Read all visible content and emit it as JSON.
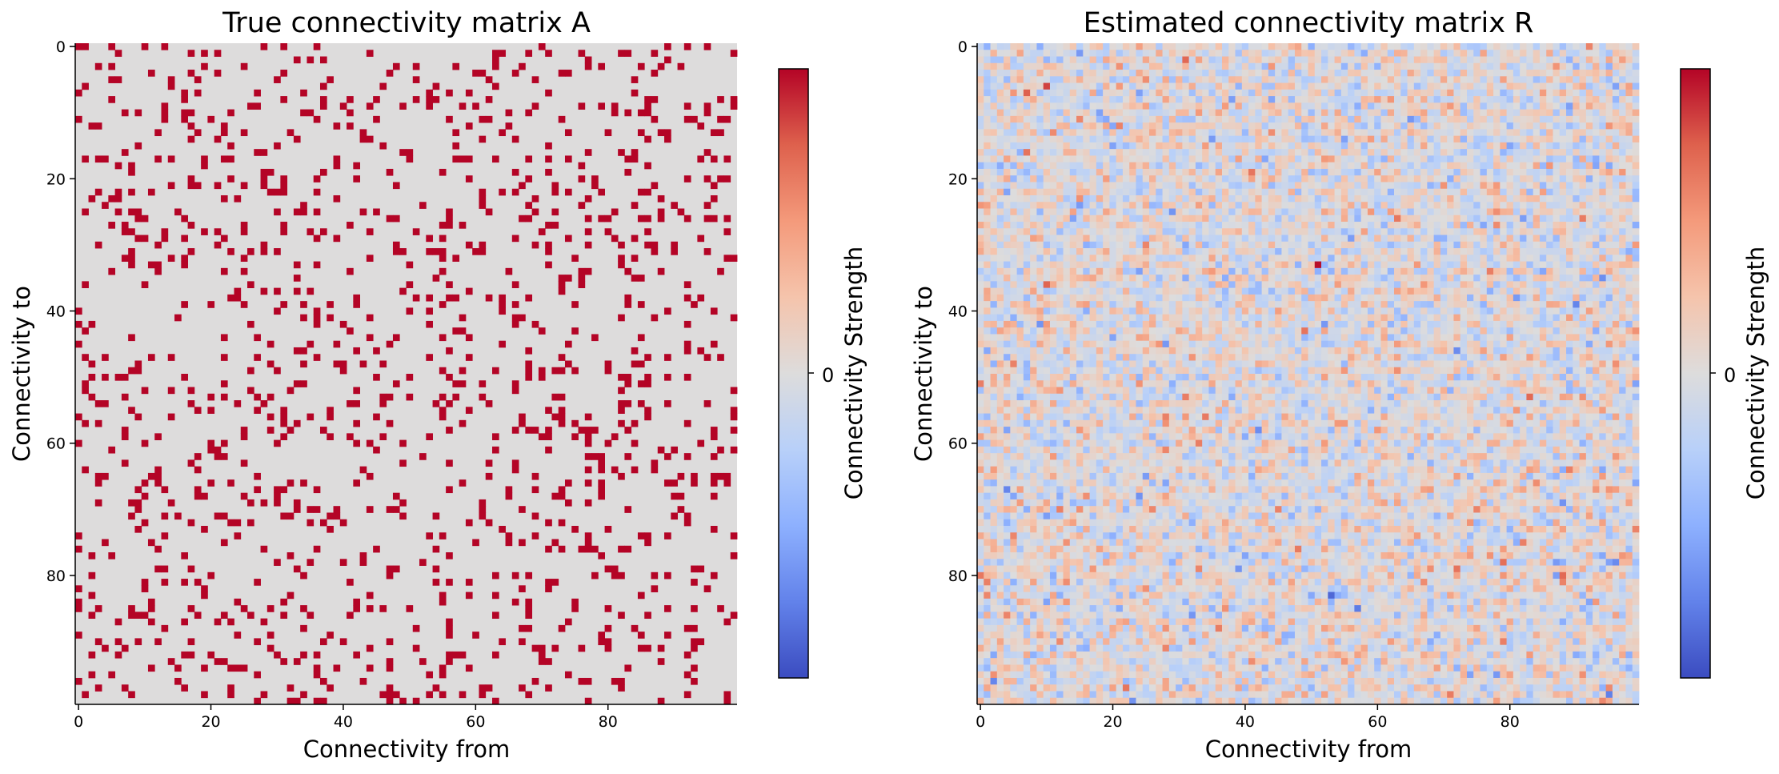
{
  "chart_data": [
    {
      "type": "heatmap",
      "title": "True connectivity matrix A",
      "xlabel": "Connectivity from",
      "ylabel": "Connectivity to",
      "xticks": [
        0,
        20,
        40,
        60,
        80
      ],
      "yticks": [
        0,
        20,
        40,
        60,
        80
      ],
      "size": [
        100,
        100
      ],
      "colormap": "coolwarm",
      "values": "binary 100x100 matrix; ~12% of entries are 1 (dark red #b40426), remainder 0 (neutral #dddcdc); individual cell values not legible at this resolution",
      "colorbar": {
        "label": "Connectivity Strength",
        "ticks": [
          "0"
        ]
      }
    },
    {
      "type": "heatmap",
      "title": "Estimated connectivity matrix R",
      "xlabel": "Connectivity from",
      "ylabel": "Connectivity to",
      "xticks": [
        0,
        20,
        40,
        60,
        80
      ],
      "yticks": [
        0,
        20,
        40,
        60,
        80
      ],
      "size": [
        100,
        100
      ],
      "colormap": "coolwarm",
      "values": "continuous 100x100 matrix of small values centred near 0 (mix of light red and light blue); individual cell values not legible at this resolution",
      "colorbar": {
        "label": "Connectivity Strength",
        "ticks": [
          "0"
        ]
      }
    }
  ],
  "colors": {
    "cmap_low": "#3b4cc0",
    "cmap_mid": "#dddcdc",
    "cmap_high": "#b40426"
  }
}
